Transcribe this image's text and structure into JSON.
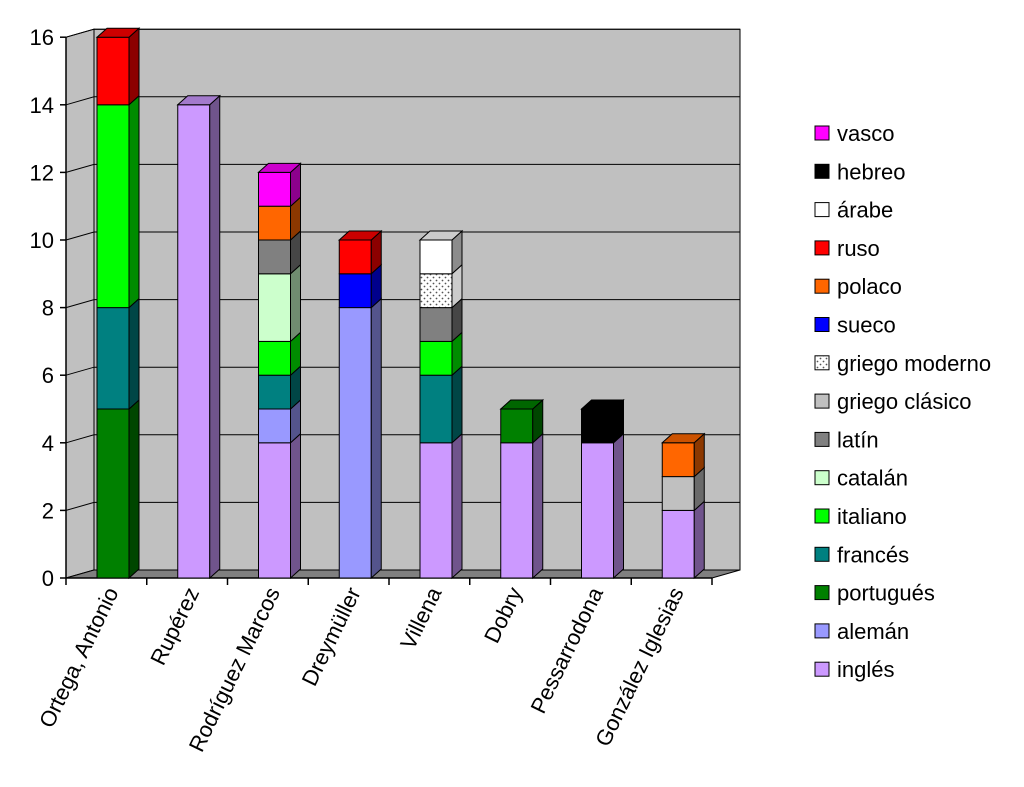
{
  "chart_data": {
    "type": "bar",
    "stacked": true,
    "three_d": true,
    "categories": [
      "Ortega, Antonio",
      "Rupérez",
      "Rodríguez Marcos",
      "Dreymüller",
      "Villena",
      "Dobry",
      "Pessarrodona",
      "González Iglesias"
    ],
    "ylim": [
      0,
      16
    ],
    "yticks": [
      0,
      2,
      4,
      6,
      8,
      10,
      12,
      14,
      16
    ],
    "grid": true,
    "legend_position": "right",
    "series": [
      {
        "name": "inglés",
        "color": "#CC99FF",
        "values": [
          0,
          14,
          4,
          0,
          4,
          4,
          4,
          2
        ]
      },
      {
        "name": "alemán",
        "color": "#9999FF",
        "values": [
          0,
          0,
          1,
          8,
          0,
          0,
          0,
          0
        ]
      },
      {
        "name": "portugués",
        "color": "#008000",
        "values": [
          5,
          0,
          0,
          0,
          0,
          1,
          0,
          0
        ]
      },
      {
        "name": "francés",
        "color": "#008080",
        "values": [
          3,
          0,
          1,
          0,
          2,
          0,
          0,
          0
        ]
      },
      {
        "name": "italiano",
        "color": "#00FF00",
        "values": [
          6,
          0,
          1,
          0,
          1,
          0,
          0,
          0
        ]
      },
      {
        "name": "catalán",
        "color": "#CCFFCC",
        "values": [
          0,
          0,
          2,
          0,
          0,
          0,
          0,
          0
        ]
      },
      {
        "name": "latín",
        "color": "#808080",
        "values": [
          0,
          0,
          1,
          0,
          1,
          0,
          0,
          0
        ]
      },
      {
        "name": "griego clásico",
        "color": "#C0C0C0",
        "values": [
          0,
          0,
          0,
          0,
          0,
          0,
          0,
          1
        ]
      },
      {
        "name": "griego moderno",
        "color": "#FFFFFF",
        "pattern": "dotted",
        "values": [
          0,
          0,
          0,
          0,
          1,
          0,
          0,
          0
        ]
      },
      {
        "name": "sueco",
        "color": "#0000FF",
        "values": [
          0,
          0,
          0,
          1,
          0,
          0,
          0,
          0
        ]
      },
      {
        "name": "polaco",
        "color": "#FF6600",
        "values": [
          0,
          0,
          1,
          0,
          0,
          0,
          0,
          1
        ]
      },
      {
        "name": "ruso",
        "color": "#FF0000",
        "values": [
          2,
          0,
          0,
          1,
          0,
          0,
          0,
          0
        ]
      },
      {
        "name": "árabe",
        "color": "#FFFFFF",
        "values": [
          0,
          0,
          0,
          0,
          1,
          0,
          0,
          0
        ]
      },
      {
        "name": "hebreo",
        "color": "#000000",
        "values": [
          0,
          0,
          0,
          0,
          0,
          0,
          1,
          0
        ]
      },
      {
        "name": "vasco",
        "color": "#FF00FF",
        "values": [
          0,
          0,
          1,
          0,
          0,
          0,
          0,
          0
        ]
      }
    ],
    "colors": {
      "plot_background": "#C0C0C0",
      "floor": "#808080",
      "gridline": "#000000"
    }
  }
}
